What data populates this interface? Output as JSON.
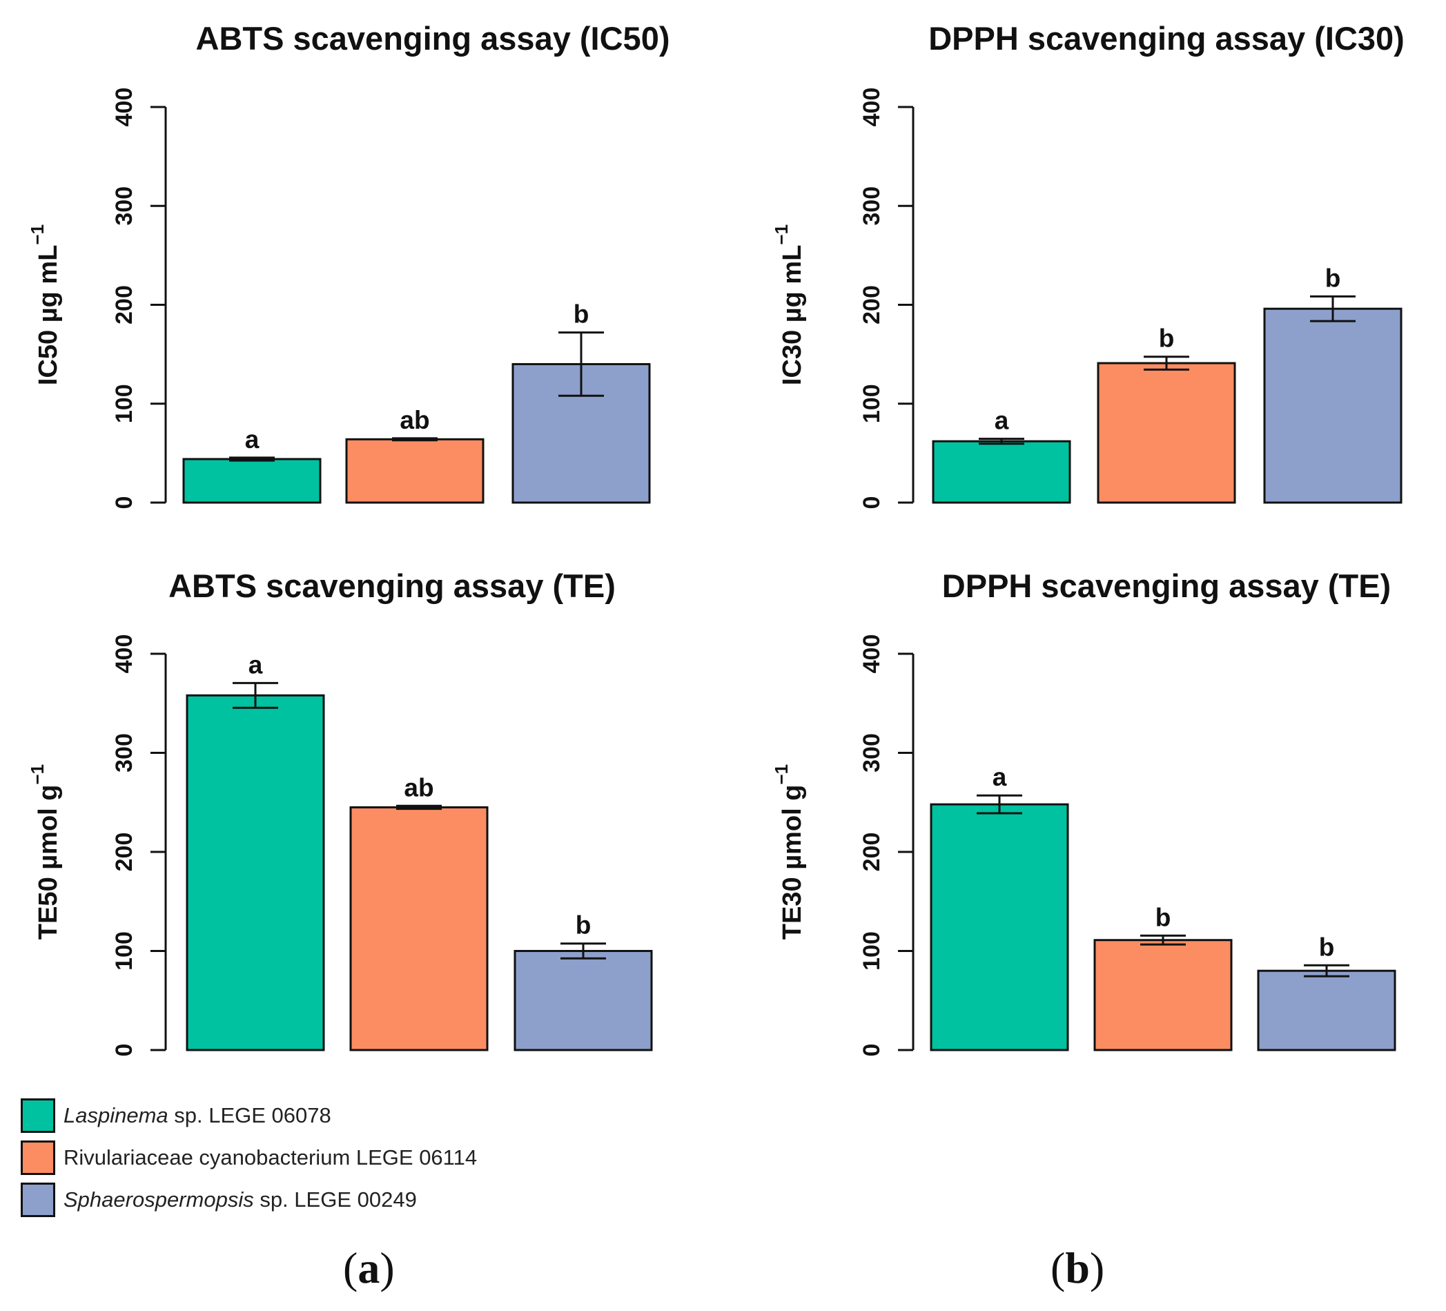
{
  "legend": [
    {
      "italic": "Laspinema",
      "rest": " sp. LEGE 06078",
      "color": "#00C2A0"
    },
    {
      "italic": "",
      "rest": "Rivulariaceae cyanobacterium LEGE 06114",
      "color": "#FC8D62"
    },
    {
      "italic": "Sphaerospermopsis",
      "rest": " sp. LEGE 00249",
      "color": "#8DA0CB"
    }
  ],
  "sublabels": {
    "a_open": "(",
    "a_letter": "a",
    "a_close": ")",
    "b_open": "(",
    "b_letter": "b",
    "b_close": ")"
  },
  "chart_data": [
    {
      "type": "bar",
      "title": "ABTS scavenging assay (IC50)",
      "ylabel_main": "IC50 µg mL",
      "ylabel_sup": "−1",
      "ylim": [
        0,
        400
      ],
      "yticks": [
        0,
        100,
        200,
        300,
        400
      ],
      "categories": [
        "Laspinema sp. LEGE 06078",
        "Rivulariaceae cyanobacterium LEGE 06114",
        "Sphaerospermopsis sp. LEGE 00249"
      ],
      "values": [
        44,
        64,
        140
      ],
      "errors": [
        1.5,
        1,
        32
      ],
      "letters": [
        "a",
        "ab",
        "b"
      ],
      "colors": [
        "#00C2A0",
        "#FC8D62",
        "#8DA0CB"
      ]
    },
    {
      "type": "bar",
      "title": "DPPH scavenging assay (IC30)",
      "ylabel_main": "IC30 µg mL",
      "ylabel_sup": "−1",
      "ylim": [
        0,
        400
      ],
      "yticks": [
        0,
        100,
        200,
        300,
        400
      ],
      "categories": [
        "Laspinema sp. LEGE 06078",
        "Rivulariaceae cyanobacterium LEGE 06114",
        "Sphaerospermopsis sp. LEGE 00249"
      ],
      "values": [
        62,
        141,
        196
      ],
      "errors": [
        2.5,
        6.5,
        12.5
      ],
      "letters": [
        "a",
        "b",
        "b"
      ],
      "colors": [
        "#00C2A0",
        "#FC8D62",
        "#8DA0CB"
      ]
    },
    {
      "type": "bar",
      "title": "ABTS scavenging assay (TE)",
      "ylabel_main": "TE50 µmol g",
      "ylabel_sup": "−1",
      "ylim": [
        0,
        400
      ],
      "yticks": [
        0,
        100,
        200,
        300,
        400
      ],
      "categories": [
        "Laspinema sp. LEGE 06078",
        "Rivulariaceae cyanobacterium LEGE 06114",
        "Sphaerospermopsis sp. LEGE 00249"
      ],
      "values": [
        358,
        245,
        100
      ],
      "errors": [
        12.5,
        1.5,
        7.5
      ],
      "letters": [
        "a",
        "ab",
        "b"
      ],
      "colors": [
        "#00C2A0",
        "#FC8D62",
        "#8DA0CB"
      ]
    },
    {
      "type": "bar",
      "title": "DPPH scavenging assay (TE)",
      "ylabel_main": "TE30 µmol g",
      "ylabel_sup": "−1",
      "ylim": [
        0,
        400
      ],
      "yticks": [
        0,
        100,
        200,
        300,
        400
      ],
      "categories": [
        "Laspinema sp. LEGE 06078",
        "Rivulariaceae cyanobacterium LEGE 06114",
        "Sphaerospermopsis sp. LEGE 00249"
      ],
      "values": [
        248,
        111,
        80
      ],
      "errors": [
        9,
        4.5,
        5.5
      ],
      "letters": [
        "a",
        "b",
        "b"
      ],
      "colors": [
        "#00C2A0",
        "#FC8D62",
        "#8DA0CB"
      ]
    }
  ]
}
